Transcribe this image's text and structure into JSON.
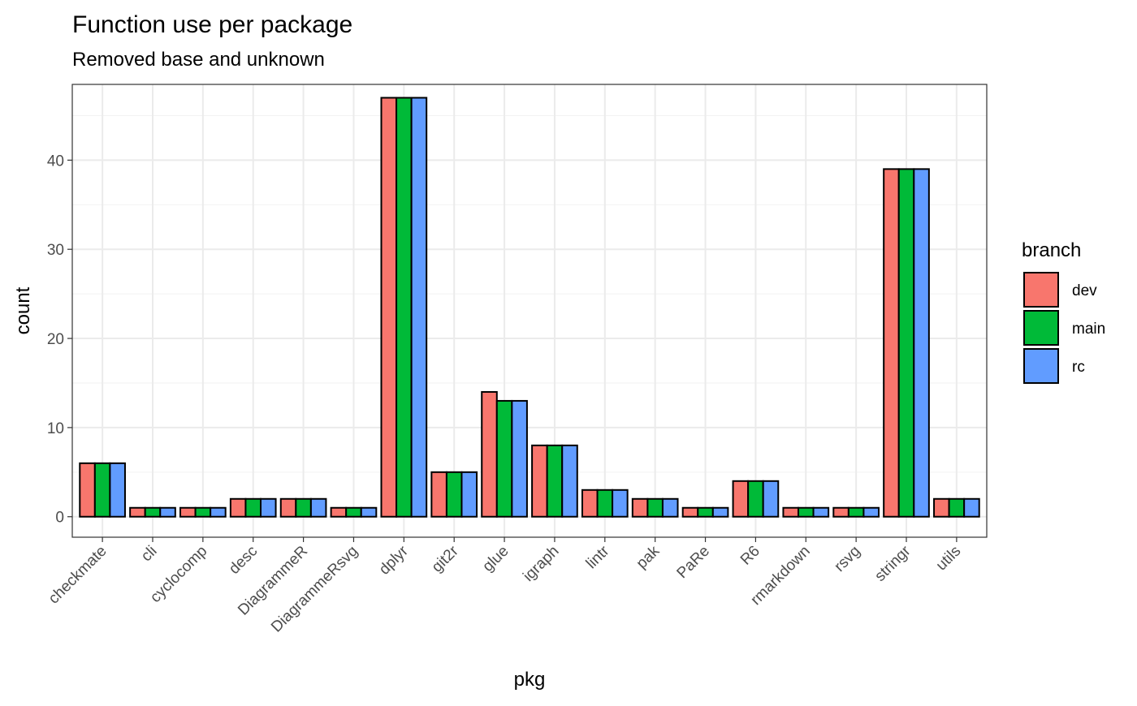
{
  "chart_data": {
    "type": "bar",
    "title": "Function use per package",
    "subtitle": "Removed base and unknown",
    "xlabel": "pkg",
    "ylabel": "count",
    "ylim": [
      -2.3,
      48.5
    ],
    "yticks": [
      0,
      10,
      20,
      30,
      40
    ],
    "grid": true,
    "legend_position": "right",
    "categories": [
      "checkmate",
      "cli",
      "cyclocomp",
      "desc",
      "DiagrammeR",
      "DiagrammeRsvg",
      "dplyr",
      "git2r",
      "glue",
      "igraph",
      "lintr",
      "pak",
      "PaRe",
      "R6",
      "rmarkdown",
      "rsvg",
      "stringr",
      "utils"
    ],
    "legend": {
      "title": "branch"
    },
    "series": [
      {
        "name": "dev",
        "color": "#F8766D",
        "values": [
          6,
          1,
          1,
          2,
          2,
          1,
          47,
          5,
          14,
          8,
          3,
          2,
          1,
          4,
          1,
          1,
          39,
          2
        ]
      },
      {
        "name": "main",
        "color": "#00BA38",
        "values": [
          6,
          1,
          1,
          2,
          2,
          1,
          47,
          5,
          13,
          8,
          3,
          2,
          1,
          4,
          1,
          1,
          39,
          2
        ]
      },
      {
        "name": "rc",
        "color": "#619CFF",
        "values": [
          6,
          1,
          1,
          2,
          2,
          1,
          47,
          5,
          13,
          8,
          3,
          2,
          1,
          4,
          1,
          1,
          39,
          2
        ]
      }
    ]
  }
}
